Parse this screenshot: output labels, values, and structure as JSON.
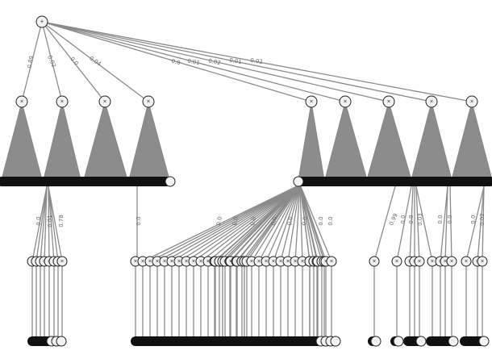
{
  "diagram": {
    "root": {
      "symbol": "+"
    },
    "node_symbol": "×",
    "root_edge_labels": [
      "0.89",
      "0.02",
      "0.0",
      "0.04",
      "0.0",
      "0.01",
      "0.02",
      "0.01",
      "0.02"
    ],
    "leaf_edge_labels_a": [
      "0.0",
      "0.01",
      "0.78"
    ],
    "leaf_edge_labels_b": [
      "0.0"
    ],
    "leaf_edge_labels_c": [
      "0.0",
      "0.0",
      "0.0",
      "0.0",
      "0.0",
      "0.0",
      "0.0",
      "0.0"
    ],
    "leaf_edge_labels_d": [
      "0.99",
      "0.0",
      "0.0",
      "0.03",
      "0.0",
      "0.0",
      "0.0",
      "0.02"
    ],
    "colors": {
      "edge": "#8a8a8a",
      "fan": "#8c8c8c",
      "bar": "#111111",
      "node_fill": "#f2f2f2"
    }
  }
}
